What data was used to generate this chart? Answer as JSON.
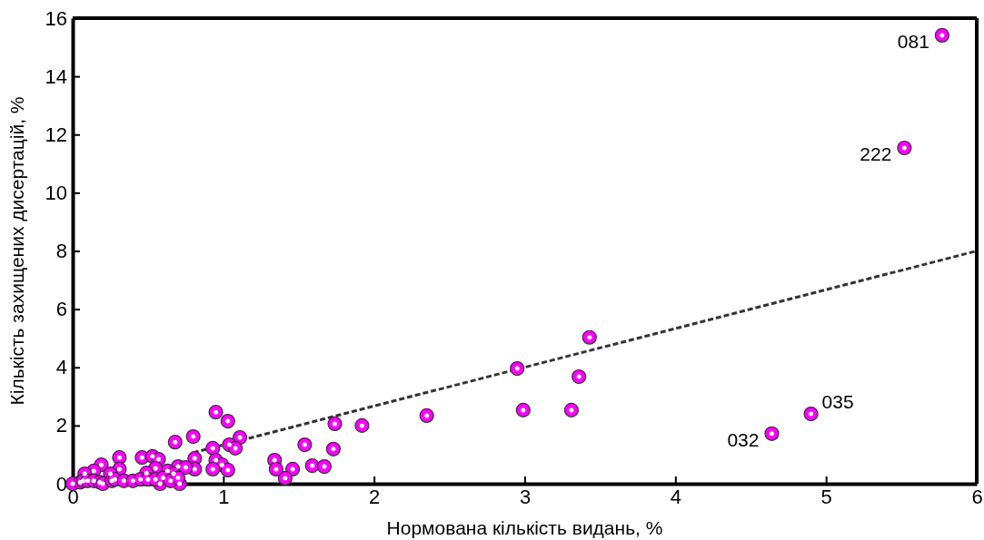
{
  "chart_data": {
    "type": "scatter",
    "xlabel": "Нормована кількість видань, %",
    "ylabel": "Кількість захищених дисертацій, %",
    "xlim": [
      0,
      6
    ],
    "ylim": [
      0,
      16
    ],
    "xticks": [
      0,
      1,
      2,
      3,
      4,
      5,
      6
    ],
    "yticks": [
      0,
      2,
      4,
      6,
      8,
      10,
      12,
      14,
      16
    ],
    "grid": false,
    "marker": "circle",
    "series": [
      {
        "color": "#ff00ff",
        "x": [
          5.77,
          5.52,
          4.9,
          4.64,
          3.43,
          2.95,
          3.36,
          2.99,
          3.31,
          2.35,
          1.92,
          1.74,
          1.73,
          1.54,
          1.59,
          1.67,
          1.46,
          1.41,
          1.34,
          1.35,
          0.95,
          1.03,
          0.8,
          0.68,
          1.11,
          1.04,
          1.08,
          0.93,
          0.31,
          0.46,
          0.53,
          0.57,
          0.81,
          0.95,
          0.99,
          0.81,
          0.93,
          1.03,
          0.7,
          0.75,
          0.63,
          0.55,
          0.49,
          0.67,
          0.19,
          0.31,
          0.14,
          0.08,
          0.25,
          0.58,
          0.71,
          0.0,
          0.05,
          0.07,
          0.1,
          0.14,
          0.18,
          0.2,
          0.26,
          0.28,
          0.34,
          0.4,
          0.45,
          0.5,
          0.55,
          0.6,
          0.65,
          0.7
        ],
        "values": [
          15.41,
          11.54,
          2.4,
          1.72,
          5.03,
          3.96,
          3.68,
          2.53,
          2.53,
          2.34,
          2.0,
          2.06,
          1.19,
          1.34,
          0.62,
          0.59,
          0.5,
          0.19,
          0.81,
          0.5,
          2.46,
          2.15,
          1.62,
          1.43,
          1.59,
          1.34,
          1.22,
          1.22,
          0.9,
          0.9,
          0.94,
          0.84,
          0.87,
          0.81,
          0.65,
          0.5,
          0.5,
          0.47,
          0.59,
          0.56,
          0.44,
          0.53,
          0.37,
          0.34,
          0.65,
          0.5,
          0.44,
          0.34,
          0.34,
          0,
          0,
          0,
          0.05,
          0.1,
          0.1,
          0.1,
          0.05,
          0,
          0.1,
          0.15,
          0.1,
          0.1,
          0.15,
          0.15,
          0.15,
          0.2,
          0.1,
          0.2
        ]
      },
      {
        "type": "line",
        "color": "#333333",
        "line_style": "dashed",
        "marker": "none",
        "x": [
          0.8,
          6
        ],
        "values": [
          1.07,
          8.0
        ]
      }
    ],
    "annotations": [
      {
        "text": "081",
        "x": 5.77,
        "y": 15.41
      },
      {
        "text": "222",
        "x": 5.52,
        "y": 11.54
      },
      {
        "text": "035",
        "x": 4.9,
        "y": 2.4
      },
      {
        "text": "032",
        "x": 4.64,
        "y": 1.72
      }
    ]
  }
}
